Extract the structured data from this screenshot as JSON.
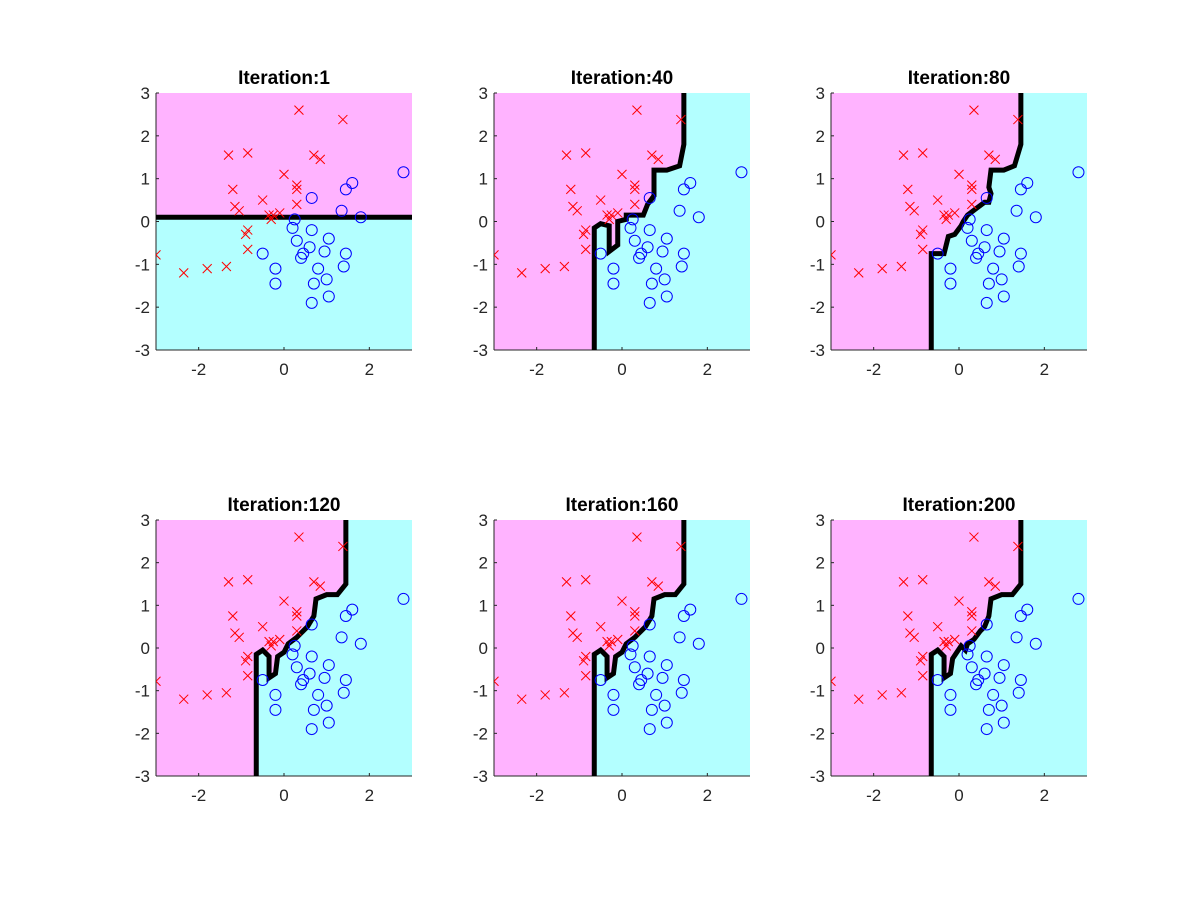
{
  "colors": {
    "class_x_region": "#ffb3ff",
    "class_o_region": "#b3ffff",
    "class_x_marker": "#ff0000",
    "class_o_marker": "#0000ff",
    "boundary": "#000000",
    "axis": "#262626"
  },
  "chart_data": {
    "type": "scatter",
    "layout": "2x3 grid of subplots",
    "xlim": [
      -3,
      3
    ],
    "ylim": [
      -3,
      3
    ],
    "xticks": [
      -2,
      0,
      2
    ],
    "yticks": [
      -3,
      -2,
      -1,
      0,
      1,
      2,
      3
    ],
    "grid": false,
    "legend": "none",
    "points_x": [
      [
        0.35,
        2.6
      ],
      [
        1.38,
        2.38
      ],
      [
        -1.3,
        1.55
      ],
      [
        -0.85,
        1.6
      ],
      [
        0.0,
        1.1
      ],
      [
        0.7,
        1.55
      ],
      [
        0.85,
        1.45
      ],
      [
        0.3,
        0.85
      ],
      [
        0.3,
        0.75
      ],
      [
        -1.2,
        0.75
      ],
      [
        -0.5,
        0.5
      ],
      [
        -1.15,
        0.35
      ],
      [
        -1.05,
        0.25
      ],
      [
        0.3,
        0.4
      ],
      [
        -0.35,
        0.15
      ],
      [
        -0.25,
        0.15
      ],
      [
        -0.3,
        0.05
      ],
      [
        -0.1,
        0.2
      ],
      [
        -0.85,
        -0.2
      ],
      [
        -0.9,
        -0.3
      ],
      [
        -0.85,
        -0.65
      ],
      [
        -1.35,
        -1.05
      ],
      [
        -1.8,
        -1.1
      ],
      [
        -2.35,
        -1.2
      ],
      [
        -3.0,
        -0.78
      ]
    ],
    "points_o": [
      [
        2.8,
        1.15
      ],
      [
        1.6,
        0.9
      ],
      [
        1.45,
        0.75
      ],
      [
        0.65,
        0.55
      ],
      [
        1.35,
        0.25
      ],
      [
        1.8,
        0.1
      ],
      [
        0.25,
        0.05
      ],
      [
        0.2,
        -0.15
      ],
      [
        0.65,
        -0.2
      ],
      [
        0.3,
        -0.45
      ],
      [
        1.05,
        -0.4
      ],
      [
        0.6,
        -0.6
      ],
      [
        0.45,
        -0.75
      ],
      [
        0.95,
        -0.7
      ],
      [
        0.4,
        -0.85
      ],
      [
        1.45,
        -0.75
      ],
      [
        -0.5,
        -0.75
      ],
      [
        -0.2,
        -1.1
      ],
      [
        0.8,
        -1.1
      ],
      [
        1.4,
        -1.05
      ],
      [
        1.0,
        -1.35
      ],
      [
        0.7,
        -1.45
      ],
      [
        -0.2,
        -1.45
      ],
      [
        1.05,
        -1.75
      ],
      [
        0.65,
        -1.9
      ]
    ],
    "subplots": [
      {
        "title": "Iteration:1",
        "boundary": [
          [
            -3,
            0.1
          ],
          [
            3,
            0.1
          ]
        ],
        "x_region_side": "above"
      },
      {
        "title": "Iteration:40",
        "boundary": [
          [
            -0.65,
            -3
          ],
          [
            -0.65,
            -0.15
          ],
          [
            -0.5,
            -0.05
          ],
          [
            -0.3,
            -0.1
          ],
          [
            -0.3,
            -0.7
          ],
          [
            -0.1,
            -0.55
          ],
          [
            -0.1,
            0.0
          ],
          [
            0.1,
            0.05
          ],
          [
            0.1,
            0.15
          ],
          [
            0.5,
            0.15
          ],
          [
            0.6,
            0.4
          ],
          [
            0.75,
            0.6
          ],
          [
            0.75,
            1.2
          ],
          [
            1.05,
            1.2
          ],
          [
            1.35,
            1.3
          ],
          [
            1.45,
            1.8
          ],
          [
            1.45,
            3
          ]
        ],
        "x_region_side": "left"
      },
      {
        "title": "Iteration:80",
        "boundary": [
          [
            -0.65,
            -3
          ],
          [
            -0.65,
            -0.75
          ],
          [
            -0.35,
            -0.75
          ],
          [
            -0.25,
            -0.35
          ],
          [
            -0.1,
            -0.3
          ],
          [
            0.05,
            -0.1
          ],
          [
            0.1,
            0.0
          ],
          [
            0.2,
            0.15
          ],
          [
            0.4,
            0.3
          ],
          [
            0.6,
            0.45
          ],
          [
            0.7,
            0.45
          ],
          [
            0.75,
            0.65
          ],
          [
            0.7,
            0.8
          ],
          [
            0.75,
            1.2
          ],
          [
            1.05,
            1.2
          ],
          [
            1.3,
            1.3
          ],
          [
            1.45,
            1.8
          ],
          [
            1.45,
            3
          ]
        ],
        "x_region_side": "left"
      },
      {
        "title": "Iteration:120",
        "boundary": [
          [
            -0.65,
            -3
          ],
          [
            -0.65,
            -0.15
          ],
          [
            -0.5,
            -0.05
          ],
          [
            -0.35,
            -0.2
          ],
          [
            -0.35,
            -0.7
          ],
          [
            -0.2,
            -0.6
          ],
          [
            -0.15,
            -0.2
          ],
          [
            0.0,
            -0.1
          ],
          [
            0.1,
            0.1
          ],
          [
            0.3,
            0.25
          ],
          [
            0.45,
            0.4
          ],
          [
            0.55,
            0.5
          ],
          [
            0.7,
            0.75
          ],
          [
            0.75,
            1.15
          ],
          [
            1.0,
            1.25
          ],
          [
            1.25,
            1.25
          ],
          [
            1.45,
            1.5
          ],
          [
            1.45,
            3
          ]
        ],
        "x_region_side": "left"
      },
      {
        "title": "Iteration:160",
        "boundary": [
          [
            -0.65,
            -3
          ],
          [
            -0.65,
            -0.15
          ],
          [
            -0.5,
            -0.05
          ],
          [
            -0.35,
            -0.2
          ],
          [
            -0.35,
            -0.7
          ],
          [
            -0.2,
            -0.6
          ],
          [
            -0.15,
            -0.2
          ],
          [
            0.0,
            -0.1
          ],
          [
            0.1,
            0.1
          ],
          [
            0.3,
            0.25
          ],
          [
            0.45,
            0.4
          ],
          [
            0.55,
            0.5
          ],
          [
            0.7,
            0.75
          ],
          [
            0.75,
            1.15
          ],
          [
            1.0,
            1.25
          ],
          [
            1.25,
            1.25
          ],
          [
            1.45,
            1.5
          ],
          [
            1.45,
            3
          ]
        ],
        "x_region_side": "left"
      },
      {
        "title": "Iteration:200",
        "boundary": [
          [
            -0.65,
            -3
          ],
          [
            -0.65,
            -0.15
          ],
          [
            -0.5,
            -0.05
          ],
          [
            -0.35,
            -0.2
          ],
          [
            -0.35,
            -0.7
          ],
          [
            -0.2,
            -0.6
          ],
          [
            -0.15,
            -0.25
          ],
          [
            -0.05,
            -0.1
          ],
          [
            0.05,
            0.05
          ],
          [
            0.15,
            -0.05
          ],
          [
            0.2,
            0.1
          ],
          [
            0.35,
            0.2
          ],
          [
            0.5,
            0.4
          ],
          [
            0.6,
            0.5
          ],
          [
            0.7,
            0.75
          ],
          [
            0.75,
            1.15
          ],
          [
            1.0,
            1.25
          ],
          [
            1.25,
            1.25
          ],
          [
            1.45,
            1.5
          ],
          [
            1.45,
            3
          ]
        ],
        "x_region_side": "left"
      }
    ]
  }
}
